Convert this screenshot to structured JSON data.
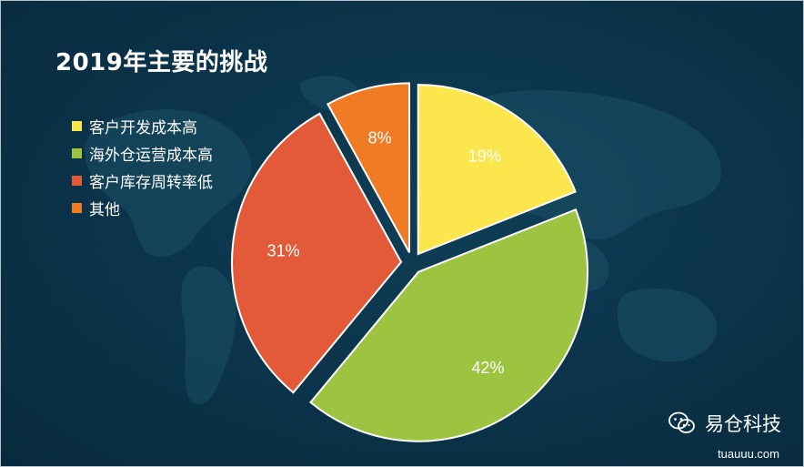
{
  "chart_data": {
    "type": "pie",
    "title": "2019年主要的挑战",
    "legend_position": "left",
    "categories": [
      "客户开发成本高",
      "海外仓运营成本高",
      "客户库存周转率低",
      "其他"
    ],
    "values": [
      19,
      42,
      31,
      8
    ],
    "labels": [
      "19%",
      "42%",
      "31%",
      "8%"
    ],
    "colors": [
      "#fbe74d",
      "#9dc441",
      "#e25a37",
      "#f07b25"
    ],
    "exploded": true
  },
  "watermark": {
    "icon": "wechat-icon",
    "brand": "易仓科技",
    "site": "tuauuu.com"
  }
}
